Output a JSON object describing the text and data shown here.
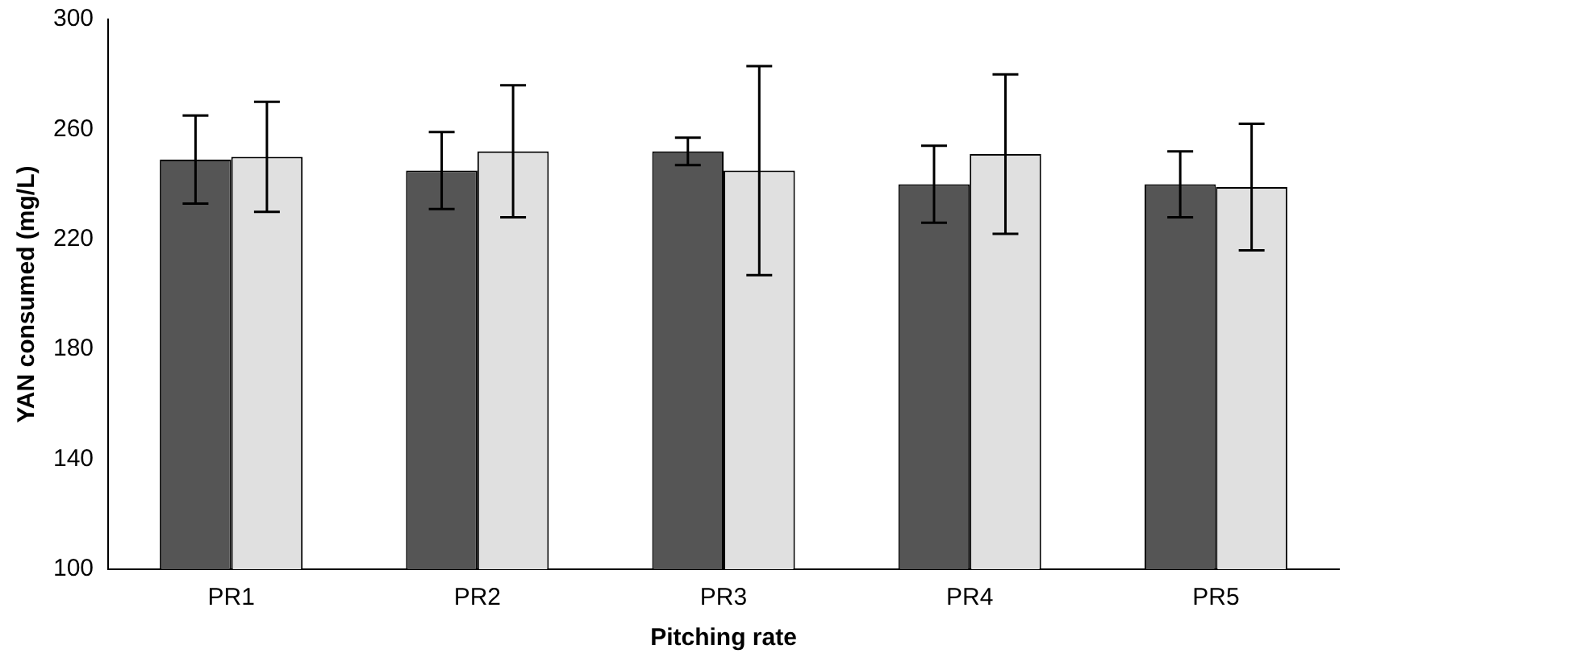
{
  "chart_data": {
    "type": "bar",
    "xlabel": "Pitching rate",
    "ylabel": "YAN consumed (mg/L)",
    "categories": [
      "PR1",
      "PR2",
      "PR3",
      "PR4",
      "PR5"
    ],
    "series": [
      {
        "color": "#555555",
        "values": [
          249,
          245,
          252,
          240,
          240
        ],
        "errors": [
          16,
          14,
          5,
          14,
          12
        ]
      },
      {
        "color": "#e0e0e0",
        "values": [
          250,
          252,
          245,
          251,
          239
        ],
        "errors": [
          20,
          24,
          38,
          29,
          23
        ]
      }
    ],
    "ylim": [
      100,
      300
    ],
    "yticks": [
      100,
      140,
      180,
      220,
      260,
      300
    ],
    "grid": false,
    "legend": false
  }
}
